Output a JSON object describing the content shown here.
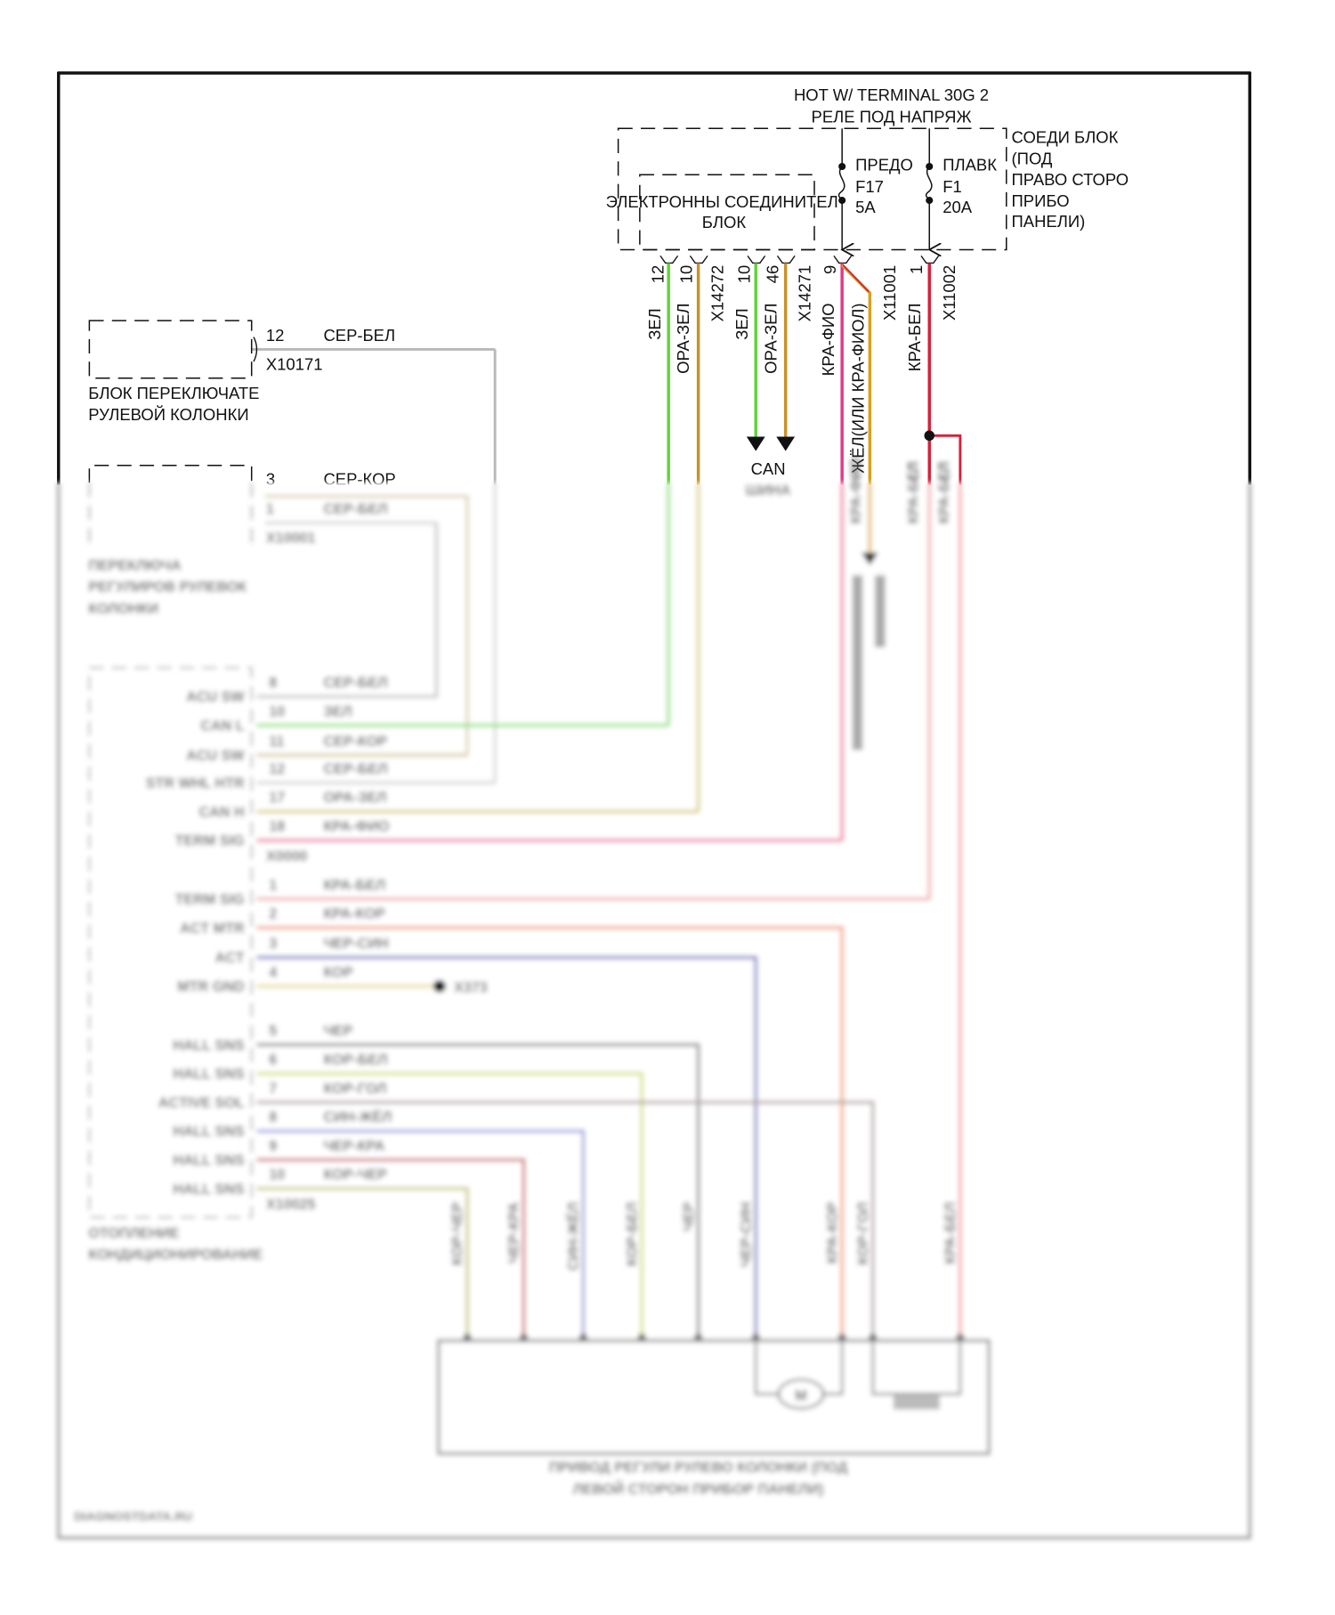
{
  "supply": {
    "line1": "HOT W/ TERMINAL 30G 2",
    "line2": "РЕЛЕ ПОД НАПРЯЖ"
  },
  "junction_block": {
    "lines": [
      "СОЕДИ БЛОК",
      "(ПОД",
      "ПРАВО СТОРО",
      "ПРИБО",
      "ПАНЕЛИ)"
    ]
  },
  "electronic_block": {
    "line1": "ЭЛЕКТРОННЫ СОЕДИНИТЕЛ",
    "line2": "БЛОК"
  },
  "fuses": [
    {
      "type": "ПРЕДО",
      "id": "F17",
      "rating": "5A"
    },
    {
      "type": "ПЛАВК",
      "id": "F1",
      "rating": "20A"
    }
  ],
  "top_connectors": {
    "pins": [
      "12",
      "10",
      "10",
      "46",
      "9",
      "1"
    ],
    "ids": [
      "X14272",
      "X14271",
      "X11001",
      "X11002"
    ],
    "wires": [
      "ЗЕЛ",
      "ОРА-ЗЕЛ",
      "ЗЕЛ",
      "ОРА-ЗЕЛ",
      "КРА-ФИО",
      "ЖЁЛ(ИЛИ КРА-ФИОЛ)",
      "КРА-БЕЛ"
    ],
    "branch_wires": [
      "КРА-ФИО",
      "КРА-БЕЛ",
      "КРА-БЕЛ"
    ]
  },
  "can_bus": {
    "label": "CAN",
    "sub": "ШИНА"
  },
  "switch_block": {
    "pin": "12",
    "wire": "СЕР-БЕЛ",
    "connector": "X10171",
    "name1": "БЛОК ПЕРЕКЛЮЧАТЕ",
    "name2": "РУЛЕВОЙ КОЛОНКИ"
  },
  "adjust_switch": {
    "pins": [
      {
        "pin": "3",
        "wire": "СЕР-КОР"
      },
      {
        "pin": "1",
        "wire": "СЕР-БЕЛ"
      }
    ],
    "connector": "X10001",
    "name": [
      "ПЕРЕКЛЮЧА",
      "РЕГУЛИРОВ РУЛЕВОК",
      "КОЛОНКИ"
    ]
  },
  "module": {
    "rows": [
      {
        "label": "ACU SW",
        "pin": "8",
        "wire": "СЕР-БЕЛ",
        "color": "#c8c8c8"
      },
      {
        "label": "CAN L",
        "pin": "10",
        "wire": "ЗЕЛ",
        "color": "#86e070"
      },
      {
        "label": "ACU SW",
        "pin": "11",
        "wire": "СЕР-КОР",
        "color": "#d8c9a0"
      },
      {
        "label": "STR WHL HTR",
        "pin": "12",
        "wire": "СЕР-БЕЛ",
        "color": "#d4d4d4"
      },
      {
        "label": "CAN H",
        "pin": "17",
        "wire": "ОРА-ЗЕЛ",
        "color": "#d8cc78"
      },
      {
        "label": "TERM SIG",
        "pin": "18",
        "wire": "КРА-ФИО",
        "color": "#ee6f9a"
      },
      {
        "label": "TERM SIG",
        "pin": "1",
        "wire": "КРА-БЕЛ",
        "color": "#f4a6a6"
      },
      {
        "label": "ACT MTR",
        "pin": "2",
        "wire": "КРА-КОР",
        "color": "#f2a07e"
      },
      {
        "label": "ACT",
        "pin": "3",
        "wire": "ЧЕР-СИН",
        "color": "#7a7ac8"
      },
      {
        "label": "MTR GND",
        "pin": "4",
        "wire": "КОР",
        "color": "#e8d890"
      },
      {
        "label": "HALL SNS",
        "pin": "5",
        "wire": "ЧЕР",
        "color": "#8f8f8f"
      },
      {
        "label": "HALL SNS",
        "pin": "6",
        "wire": "КОР-БЕЛ",
        "color": "#d6e07a"
      },
      {
        "label": "ACTIVE SOL",
        "pin": "7",
        "wire": "КОР-ГОЛ",
        "color": "#b8a8a8"
      },
      {
        "label": "HALL SNS",
        "pin": "8",
        "wire": "СИН-ЖЁЛ",
        "color": "#a0a0e0"
      },
      {
        "label": "HALL SNS",
        "pin": "9",
        "wire": "ЧЕР-КРА",
        "color": "#d07070"
      },
      {
        "label": "HALL SNS",
        "pin": "10",
        "wire": "КОР-ЧЕР",
        "color": "#c8c880"
      }
    ],
    "connectors": [
      "X0000",
      "X10025"
    ],
    "ground": "X373",
    "name": [
      "ОТОПЛЕНИЕ",
      "КОНДИЦИОНИРОВАНИЕ"
    ]
  },
  "actuator": {
    "motor": "M",
    "caption": [
      "ПРИВОД РЕГУЛИ РУЛЕВО КОЛОНКИ (ПОД",
      "ЛЕВОЙ СТОРОН ПРИБОР ПАНЕЛИ)"
    ]
  },
  "watermark": "DIAGNOSTDATA.RU",
  "colors": {
    "green": "#5fd33a",
    "orange": "#c8922a",
    "red": "#d8203a",
    "magenta": "#e03a8a",
    "yellow": "#e8b400"
  }
}
